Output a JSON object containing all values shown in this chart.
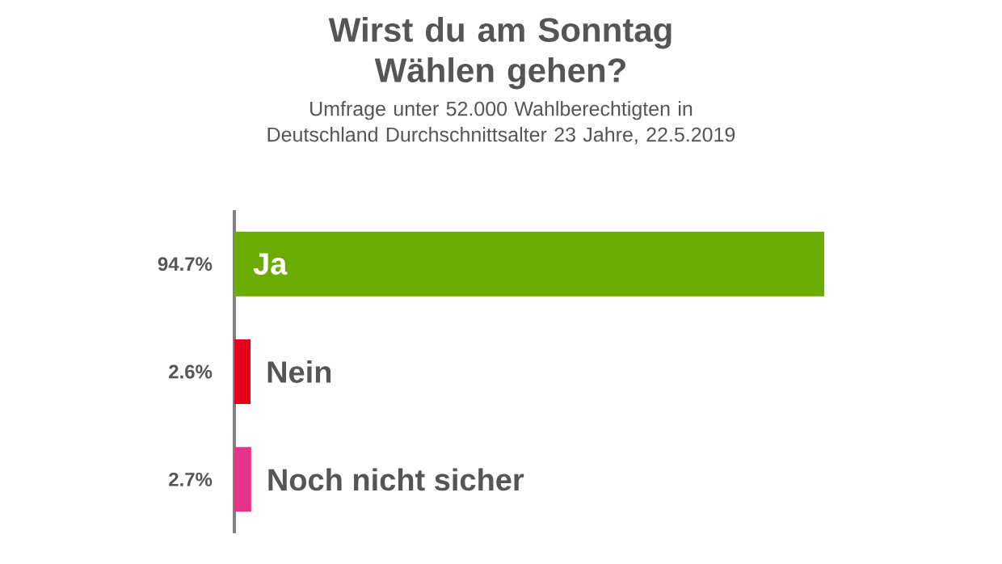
{
  "chart_data": {
    "type": "bar",
    "orientation": "horizontal",
    "title": "Wirst du am Sonntag Wählen gehen?",
    "subtitle": "Umfrage unter 52.000 Wahlberechtigten in Deutschland Durchschnittsalter 23 Jahre, 22.5.2019",
    "categories": [
      "Ja",
      "Nein",
      "Noch nicht sicher"
    ],
    "values": [
      94.7,
      2.6,
      2.7
    ],
    "value_labels": [
      "94.7%",
      "2.6%",
      "2.7%"
    ],
    "colors": [
      "#6aad00",
      "#e3001b",
      "#e6338a"
    ]
  }
}
